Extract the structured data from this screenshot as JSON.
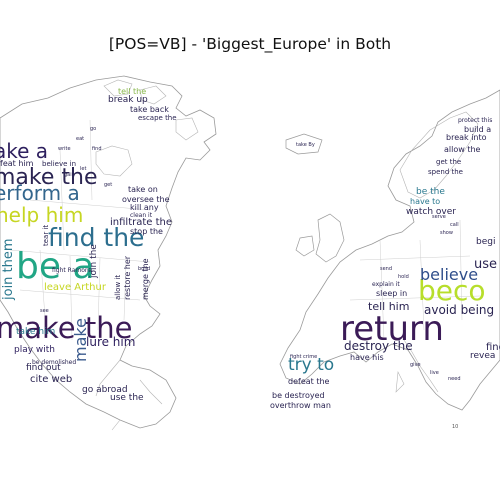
{
  "title": "[POS=VB] - 'Biggest_Europe' in Both",
  "colors": {
    "background": "#ffffff",
    "outline": "#9a9a9a"
  },
  "north_america": {
    "big_words": [
      "make the",
      "be a",
      "find the",
      "make the",
      "erform a",
      "help him",
      "ake a"
    ],
    "medium_words": [
      "join them",
      "make",
      "lure him",
      "take him",
      "play with",
      "leave Arthur",
      "infiltrate the",
      "restore her",
      "find out",
      "cite web",
      "go abroad",
      "use the",
      "be demolished",
      "break up",
      "take back",
      "escape the",
      "tell the",
      "believe in",
      "feat him",
      "take on",
      "oversee the",
      "kill any",
      "clean it",
      "stop the",
      "merge the",
      "fight Ramona",
      "join the",
      "allow it",
      "tear it"
    ],
    "small_words": [
      "write",
      "eat",
      "find",
      "go",
      "gain",
      "let",
      "get",
      "see",
      "build"
    ]
  },
  "europe": {
    "big_words": [
      "beco",
      "return",
      "try to",
      "believe",
      "avoid being",
      "tell him",
      "destroy the",
      "use",
      "begi"
    ],
    "medium_words": [
      "watch over",
      "be the",
      "have to",
      "break into",
      "allow the",
      "get the",
      "spend the",
      "build a",
      "protect this",
      "explain it",
      "sleep in",
      "have his",
      "defeat the",
      "be destroyed",
      "overthrow man",
      "fight crime",
      "find",
      "revea",
      "take By"
    ],
    "small_words": [
      "serve",
      "call",
      "show",
      "send",
      "hold",
      "give",
      "live",
      "need"
    ]
  }
}
